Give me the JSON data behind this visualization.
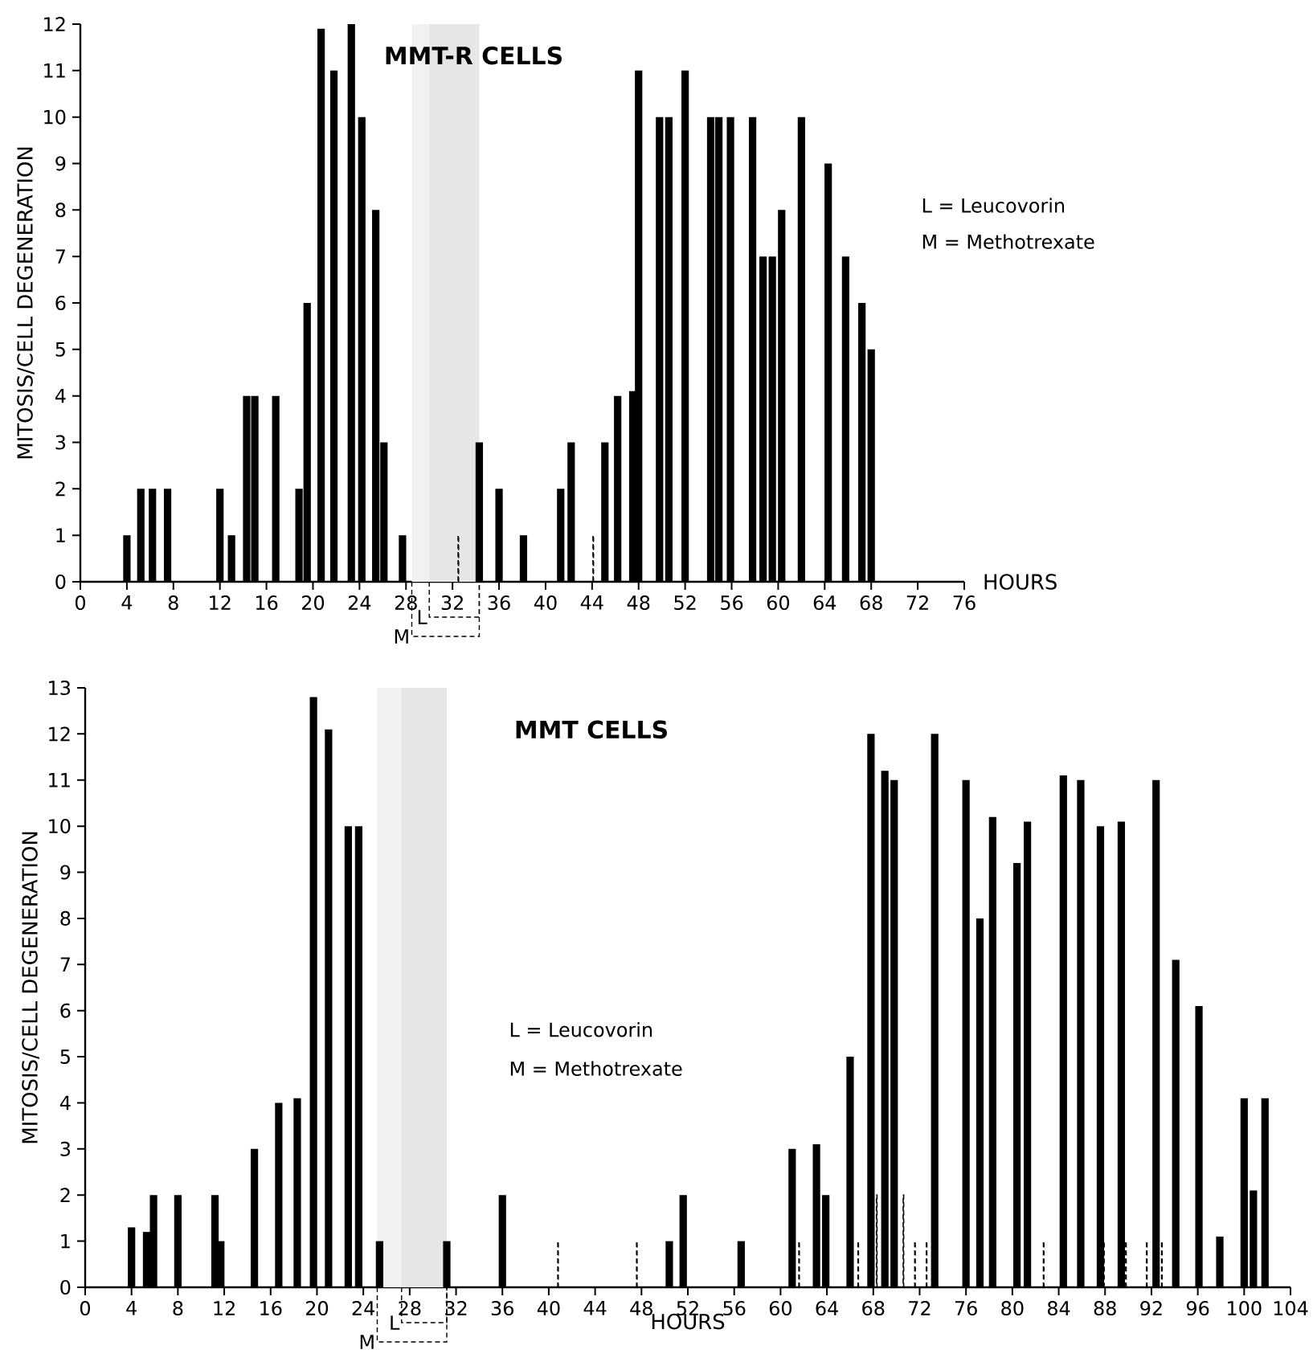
{
  "chart_data": [
    {
      "type": "bar",
      "title": "MMT-R CELLS",
      "xlabel": "HOURS",
      "ylabel": "MITOSIS/CELL DEGENERATION",
      "xlim": [
        0,
        76
      ],
      "ylim": [
        0,
        12
      ],
      "xticks": [
        0,
        4,
        8,
        12,
        16,
        20,
        24,
        28,
        32,
        36,
        40,
        44,
        48,
        52,
        56,
        60,
        64,
        68,
        72,
        76
      ],
      "yticks": [
        0,
        1,
        2,
        3,
        4,
        5,
        6,
        7,
        8,
        9,
        10,
        11,
        12
      ],
      "series": [
        {
          "color": "#000000",
          "line_style": "solid",
          "values": [
            1,
            2,
            2,
            2,
            2,
            1,
            4,
            4,
            4,
            2,
            6,
            11.9,
            11,
            12,
            10,
            8,
            3,
            1,
            3,
            2,
            1,
            2,
            3,
            3,
            4,
            4.1,
            11,
            10,
            10,
            11,
            10,
            10,
            10,
            10,
            7,
            7,
            8,
            10,
            9,
            7,
            6,
            5
          ]
        },
        {
          "color": "#000000",
          "line_style": "dashed",
          "x": [
            32.5,
            44.1
          ],
          "values": [
            1,
            1
          ]
        }
      ],
      "x": [
        4,
        5.2,
        6.2,
        7.5,
        12,
        13,
        14.3,
        15,
        16.8,
        18.8,
        19.5,
        20.7,
        21.8,
        23.3,
        24.2,
        25.4,
        26.1,
        27.7,
        34.3,
        36,
        38.1,
        41.3,
        42.2,
        45.1,
        46.2,
        47.5,
        48,
        49.8,
        50.6,
        52,
        54.2,
        54.9,
        55.9,
        57.8,
        58.7,
        59.5,
        60.3,
        62,
        64.3,
        65.8,
        67.2,
        68
      ],
      "bands": [
        {
          "axis": "x",
          "from": 28.5,
          "to": 34.3,
          "label": "M",
          "color": "#f2f2f2"
        },
        {
          "axis": "x",
          "from": 30,
          "to": 34.3,
          "label": "L",
          "color": "#e6e6e6"
        }
      ],
      "annotations": [
        "L = Leucovorin",
        "M = Methotrexate"
      ]
    },
    {
      "type": "bar",
      "title": "MMT CELLS",
      "xlabel": "HOURS",
      "ylabel": "MITOSIS/CELL DEGENERATION",
      "xlim": [
        0,
        104
      ],
      "ylim": [
        0,
        13
      ],
      "xticks": [
        0,
        4,
        8,
        12,
        16,
        20,
        24,
        28,
        32,
        36,
        40,
        44,
        48,
        52,
        56,
        60,
        64,
        68,
        72,
        76,
        80,
        84,
        88,
        92,
        96,
        100,
        104
      ],
      "yticks": [
        0,
        1,
        2,
        3,
        4,
        5,
        6,
        7,
        8,
        9,
        10,
        11,
        12,
        13
      ],
      "series": [
        {
          "color": "#000000",
          "line_style": "solid",
          "values": [
            1.3,
            1.2,
            2,
            2,
            2,
            1,
            3,
            4,
            4.1,
            12.8,
            12.1,
            10,
            10,
            1,
            1,
            2,
            1,
            2,
            1,
            3,
            3.1,
            2,
            5,
            12,
            11.2,
            11,
            12,
            11,
            8,
            10.2,
            9.2,
            10.1,
            11.1,
            11,
            10,
            10.1,
            11,
            7.1,
            6.1,
            1.1,
            4.1,
            2.1,
            4.1
          ]
        },
        {
          "color": "#000000",
          "line_style": "dashed",
          "x": [
            40.8,
            47.6,
            61.6,
            66.7,
            68.3,
            70.6,
            71.6,
            72.6,
            82.7,
            87.9,
            89.8,
            91.6,
            92.9
          ],
          "values": [
            1,
            1,
            1,
            1,
            2,
            2,
            1,
            1,
            1,
            1,
            1,
            1,
            1
          ]
        }
      ],
      "x": [
        4,
        5.3,
        5.9,
        8,
        11.2,
        11.7,
        14.6,
        16.7,
        18.3,
        19.7,
        21,
        22.7,
        23.6,
        25.4,
        31.2,
        36,
        50.4,
        51.6,
        56.6,
        61,
        63.1,
        63.9,
        66,
        67.8,
        69,
        69.8,
        73.3,
        76,
        77.2,
        78.3,
        80.4,
        81.3,
        84.4,
        85.9,
        87.6,
        89.4,
        92.4,
        94.1,
        96.1,
        97.9,
        100,
        100.8,
        101.8
      ],
      "bands": [
        {
          "axis": "x",
          "from": 25.2,
          "to": 31.2,
          "label": "M",
          "color": "#f2f2f2"
        },
        {
          "axis": "x",
          "from": 27.3,
          "to": 31.2,
          "label": "L",
          "color": "#e6e6e6"
        }
      ],
      "annotations": [
        "L = Leucovorin",
        "M = Methotrexate"
      ]
    }
  ]
}
